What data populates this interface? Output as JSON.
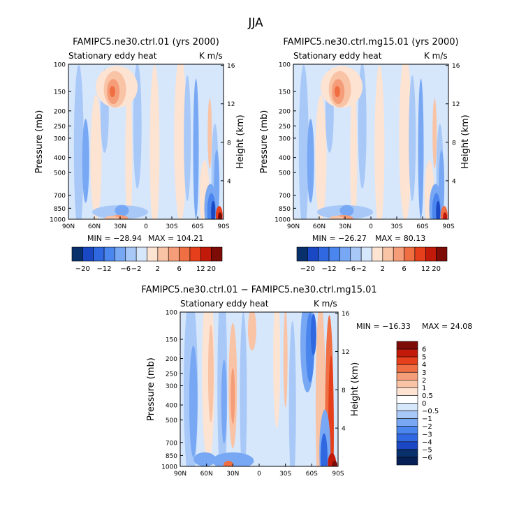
{
  "page_title": "JJA",
  "chart_data": [
    {
      "type": "heatmap",
      "title": "FAMIPC5.ne30.ctrl.01 (yrs 2000)",
      "subtitle_left": "Stationary eddy heat",
      "subtitle_right": "K m/s",
      "xlabel": "",
      "ylabel": "Pressure (mb)",
      "ylabel_right": "Height (km)",
      "x_ticks": [
        "90N",
        "60N",
        "30N",
        "0",
        "30S",
        "60S",
        "90S"
      ],
      "y_ticks": [
        "100",
        "150",
        "200",
        "250",
        "300",
        "400",
        "500",
        "700",
        "850",
        "1000"
      ],
      "y_ticks_right": [
        "16",
        "12",
        "8",
        "4"
      ],
      "min_label": "MIN = −28.94",
      "max_label": "MAX = 104.21",
      "colorbar_labels": [
        "−20",
        "−12",
        "−6",
        "−2",
        "2",
        "6",
        "12",
        "20"
      ],
      "features": [
        {
          "kind": "pos",
          "lat": 38,
          "p": 150,
          "value": 12
        },
        {
          "kind": "neg",
          "lat": 68,
          "p": 400,
          "value": -6
        },
        {
          "kind": "pos",
          "lat": -82,
          "p": 950,
          "value": 20
        },
        {
          "kind": "neg",
          "lat": -72,
          "p": 850,
          "value": -12
        }
      ]
    },
    {
      "type": "heatmap",
      "title": "FAMIPC5.ne30.ctrl.mg15.01 (yrs 2000)",
      "subtitle_left": "Stationary eddy heat",
      "subtitle_right": "K m/s",
      "xlabel": "",
      "ylabel": "Pressure (mb)",
      "ylabel_right": "Height (km)",
      "x_ticks": [
        "90N",
        "60N",
        "30N",
        "0",
        "30S",
        "60S",
        "90S"
      ],
      "y_ticks": [
        "100",
        "150",
        "200",
        "250",
        "300",
        "400",
        "500",
        "700",
        "850",
        "1000"
      ],
      "y_ticks_right": [
        "16",
        "12",
        "8",
        "4"
      ],
      "min_label": "MIN = −26.27",
      "max_label": "MAX = 80.13",
      "colorbar_labels": [
        "−20",
        "−12",
        "−6",
        "−2",
        "2",
        "6",
        "12",
        "20"
      ],
      "features": [
        {
          "kind": "pos",
          "lat": 38,
          "p": 150,
          "value": 12
        },
        {
          "kind": "neg",
          "lat": 68,
          "p": 400,
          "value": -6
        },
        {
          "kind": "pos",
          "lat": -82,
          "p": 950,
          "value": 12
        },
        {
          "kind": "neg",
          "lat": -72,
          "p": 850,
          "value": -12
        }
      ]
    },
    {
      "type": "heatmap",
      "title": "FAMIPC5.ne30.ctrl.01 − FAMIPC5.ne30.ctrl.mg15.01",
      "subtitle_left": "Stationary eddy heat",
      "subtitle_right": "K m/s",
      "xlabel": "",
      "ylabel": "Pressure (mb)",
      "ylabel_right": "Height (km)",
      "x_ticks": [
        "90N",
        "60N",
        "30N",
        "0",
        "30S",
        "60S",
        "90S"
      ],
      "y_ticks": [
        "100",
        "150",
        "200",
        "250",
        "300",
        "400",
        "500",
        "700",
        "850",
        "1000"
      ],
      "y_ticks_right": [
        "16",
        "12",
        "8",
        "4"
      ],
      "min_label": "MIN = −16.33",
      "max_label": "MAX =  24.08",
      "colorbar_labels": [
        "6",
        "5",
        "4",
        "3",
        "2",
        "1",
        "0.5",
        "0",
        "−0.5",
        "−1",
        "−2",
        "−3",
        "−4",
        "−5",
        "−6"
      ]
    }
  ],
  "colors": {
    "negative": [
      "#08306b",
      "#1a47c4",
      "#2f68e0",
      "#4a86ee",
      "#78a8f4",
      "#a8c8f8",
      "#d6e6fb"
    ],
    "positive": [
      "#fde3d2",
      "#f9c3a6",
      "#f59c78",
      "#ef6e42",
      "#e5401b",
      "#c21a0a",
      "#7d0b06"
    ],
    "neutral": "#d6e6fb"
  }
}
